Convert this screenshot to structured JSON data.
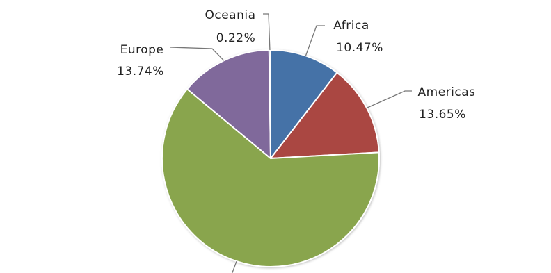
{
  "chart_data": {
    "type": "pie",
    "categories": [
      "Africa",
      "Americas",
      null,
      "Europe",
      "Oceania"
    ],
    "values": [
      10.47,
      13.65,
      61.92,
      13.74,
      0.22
    ],
    "value_labels": [
      "10.47%",
      "13.65%",
      null,
      "13.74%",
      "0.22%"
    ],
    "colors": [
      "#4572a7",
      "#aa4643",
      "#89a54e",
      "#80699b",
      "#3d96ae"
    ]
  }
}
